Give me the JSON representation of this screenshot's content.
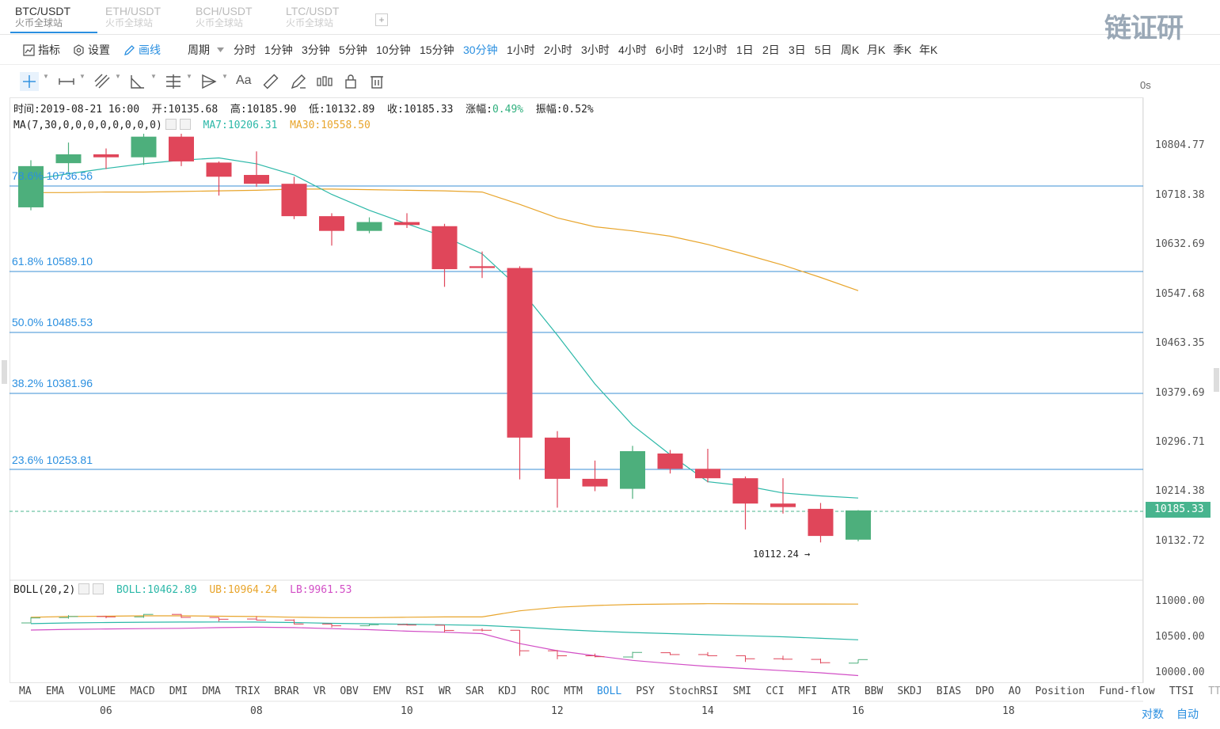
{
  "tabs": [
    {
      "pair": "BTC/USDT",
      "exchange": "火币全球站"
    },
    {
      "pair": "ETH/USDT",
      "exchange": "火币全球站"
    },
    {
      "pair": "BCH/USDT",
      "exchange": "火币全球站"
    },
    {
      "pair": "LTC/USDT",
      "exchange": "火币全球站"
    }
  ],
  "tab_add": "+",
  "logo": {
    "text": "链证研"
  },
  "toolbar": {
    "indicator": "指标",
    "settings": "设置",
    "draw": "画线",
    "period_label": "周期",
    "periods": [
      "分时",
      "1分钟",
      "3分钟",
      "5分钟",
      "10分钟",
      "15分钟",
      "30分钟",
      "1小时",
      "2小时",
      "3小时",
      "4小时",
      "6小时",
      "12小时",
      "1日",
      "2日",
      "3日",
      "5日",
      "周K",
      "月K",
      "季K",
      "年K"
    ],
    "active_period": "30分钟",
    "timer": "0s"
  },
  "drawing_tools": {
    "text_tool": "Aa"
  },
  "info": {
    "time_label": "时间:",
    "time": "2019-08-21 16:00",
    "open_label": "开:",
    "open": "10135.68",
    "high_label": "高:",
    "high": "10185.90",
    "low_label": "低:",
    "low": "10132.89",
    "close_label": "收:",
    "close": "10185.33",
    "change_label": "涨幅:",
    "change": "0.49%",
    "amp_label": "振幅:",
    "amp": "0.52%"
  },
  "ma_line": {
    "params": "MA(7,30,0,0,0,0,0,0,0,0)",
    "ma7_label": "MA7:",
    "ma7": "10206.31",
    "ma30_label": "MA30:",
    "ma30": "10558.50"
  },
  "fib_levels": [
    {
      "label": "78.6% 10736.56"
    },
    {
      "label": "61.8% 10589.10"
    },
    {
      "label": "50.0% 10485.53"
    },
    {
      "label": "38.2% 10381.96"
    },
    {
      "label": "23.6% 10253.81"
    }
  ],
  "price_axis": [
    "10804.77",
    "10718.38",
    "10632.69",
    "10547.68",
    "10463.35",
    "10379.69",
    "10296.71",
    "10214.38",
    "10132.72"
  ],
  "current_price": "10185.33",
  "low_marker": "10112.24 →",
  "boll_line": {
    "params": "BOLL(20,2)",
    "boll_label": "BOLL:",
    "boll": "10462.89",
    "ub_label": "UB:",
    "ub": "10964.24",
    "lb_label": "LB:",
    "lb": "9961.53"
  },
  "boll_axis": [
    "11000.00",
    "10500.00",
    "10000.00"
  ],
  "indicators": [
    "MA",
    "EMA",
    "VOLUME",
    "MACD",
    "DMI",
    "DMA",
    "TRIX",
    "BRAR",
    "VR",
    "OBV",
    "EMV",
    "RSI",
    "WR",
    "SAR",
    "KDJ",
    "ROC",
    "MTM",
    "BOLL",
    "PSY",
    "StochRSI",
    "SMI",
    "CCI",
    "MFI",
    "ATR",
    "BBW",
    "SKDJ",
    "BIAS",
    "DPO",
    "AO",
    "Position",
    "Fund-flow",
    "TTSI",
    "TTMU"
  ],
  "active_indicator": "BOLL",
  "x_labels": [
    "06",
    "08",
    "10",
    "12",
    "14",
    "16",
    "18"
  ],
  "scale_buttons": {
    "log": "对数",
    "auto": "自动"
  },
  "colors": {
    "up": "#4daf7c",
    "down": "#e0465a",
    "accent": "#2a8fe0",
    "ma7": "#2cb8a8",
    "ma30": "#e8a52c",
    "lb": "#d24fc6"
  },
  "chart_data": {
    "type": "candlestick",
    "candles": [
      {
        "o": 10700,
        "h": 10780,
        "l": 10695,
        "c": 10770
      },
      {
        "o": 10775,
        "h": 10810,
        "l": 10760,
        "c": 10790
      },
      {
        "o": 10790,
        "h": 10800,
        "l": 10765,
        "c": 10785
      },
      {
        "o": 10785,
        "h": 10825,
        "l": 10772,
        "c": 10820
      },
      {
        "o": 10820,
        "h": 10825,
        "l": 10770,
        "c": 10778
      },
      {
        "o": 10776,
        "h": 10778,
        "l": 10720,
        "c": 10752
      },
      {
        "o": 10755,
        "h": 10795,
        "l": 10735,
        "c": 10740
      },
      {
        "o": 10740,
        "h": 10752,
        "l": 10680,
        "c": 10685
      },
      {
        "o": 10685,
        "h": 10690,
        "l": 10635,
        "c": 10660
      },
      {
        "o": 10660,
        "h": 10683,
        "l": 10656,
        "c": 10675
      },
      {
        "o": 10675,
        "h": 10690,
        "l": 10665,
        "c": 10670
      },
      {
        "o": 10668,
        "h": 10672,
        "l": 10565,
        "c": 10595
      },
      {
        "o": 10600,
        "h": 10625,
        "l": 10580,
        "c": 10597
      },
      {
        "o": 10597,
        "h": 10600,
        "l": 10238,
        "c": 10309
      },
      {
        "o": 10309,
        "h": 10320,
        "l": 10190,
        "c": 10239
      },
      {
        "o": 10239,
        "h": 10270,
        "l": 10218,
        "c": 10226
      },
      {
        "o": 10222,
        "h": 10295,
        "l": 10205,
        "c": 10286
      },
      {
        "o": 10282,
        "h": 10288,
        "l": 10248,
        "c": 10256
      },
      {
        "o": 10256,
        "h": 10290,
        "l": 10233,
        "c": 10240
      },
      {
        "o": 10240,
        "h": 10243,
        "l": 10153,
        "c": 10197
      },
      {
        "o": 10197,
        "h": 10240,
        "l": 10180,
        "c": 10191
      },
      {
        "o": 10188,
        "h": 10198,
        "l": 10131,
        "c": 10142
      },
      {
        "o": 10135.68,
        "h": 10185.9,
        "l": 10132.89,
        "c": 10185.33
      }
    ],
    "ma7": [
      10747,
      10757,
      10766,
      10774,
      10780,
      10784,
      10774,
      10755,
      10722,
      10695,
      10672,
      10650,
      10621,
      10562,
      10483,
      10400,
      10330,
      10280,
      10234,
      10227,
      10215,
      10210,
      10206.31
    ],
    "ma30": [
      10725,
      10725,
      10726,
      10726,
      10727,
      10728,
      10729,
      10731,
      10731,
      10730,
      10729,
      10728,
      10726,
      10705,
      10682,
      10667,
      10660,
      10651,
      10637,
      10620,
      10602,
      10581,
      10558.5
    ],
    "boll_mid": [
      10690,
      10700,
      10705,
      10710,
      10712,
      10713,
      10712,
      10705,
      10695,
      10688,
      10682,
      10675,
      10665,
      10640,
      10610,
      10585,
      10565,
      10550,
      10535,
      10520,
      10505,
      10485,
      10462.89
    ],
    "boll_ub": [
      10780,
      10790,
      10795,
      10800,
      10800,
      10795,
      10790,
      10780,
      10775,
      10775,
      10780,
      10785,
      10785,
      10870,
      10920,
      10945,
      10960,
      10965,
      10970,
      10968,
      10965,
      10966,
      10964.24
    ],
    "boll_lb": [
      10600,
      10610,
      10615,
      10620,
      10625,
      10635,
      10640,
      10635,
      10620,
      10605,
      10585,
      10570,
      10550,
      10410,
      10310,
      10240,
      10175,
      10130,
      10090,
      10060,
      10030,
      10000,
      9961.53
    ]
  }
}
